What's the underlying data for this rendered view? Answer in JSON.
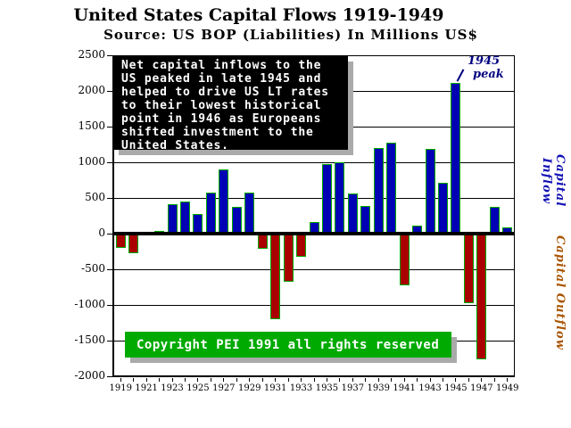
{
  "title": "United States Capital Flows 1919-1949",
  "subtitle": "Source: US BOP (Liabilities) In Millions US$",
  "annotation": {
    "lines": [
      "Net capital inflows to the",
      "US peaked in late 1945 and",
      "helped to drive US LT rates",
      "to their lowest historical",
      "point in 1946 as Europeans",
      "shifted investment to the",
      "United States."
    ]
  },
  "copyright": "Copyright PEI 1991 all rights reserved",
  "peak": {
    "line1": "1945",
    "line2": "peak"
  },
  "side_labels": {
    "inflow": "Capital Inflow",
    "outflow": "Capital Outflow"
  },
  "colors": {
    "background": "#FFFFFF",
    "positive_bar": "#0000B4",
    "negative_bar": "#AA0000",
    "bar_outline": "#00AA00",
    "annotation_box_bg": "#000000",
    "annotation_text": "#FFFFFF",
    "copyright_box_bg": "#00AA00",
    "shadow_gray": "#AAAAAA",
    "peak_text": "#000080",
    "inflow_label": "#1212B4",
    "outflow_label": "#AA5500"
  },
  "chart_data": {
    "type": "bar",
    "title": "United States Capital Flows 1919-1949",
    "subtitle": "Source: US BOP (Liabilities) In Millions US$",
    "xlabel": "",
    "ylabel": "Millions US$",
    "x": [
      1919,
      1920,
      1921,
      1922,
      1923,
      1924,
      1925,
      1926,
      1927,
      1928,
      1929,
      1930,
      1931,
      1932,
      1933,
      1934,
      1935,
      1936,
      1937,
      1938,
      1939,
      1940,
      1941,
      1942,
      1943,
      1944,
      1945,
      1946,
      1947,
      1948,
      1949
    ],
    "values": [
      -200,
      -280,
      0,
      40,
      410,
      450,
      270,
      575,
      895,
      375,
      580,
      -210,
      -1200,
      -680,
      -320,
      160,
      980,
      1000,
      560,
      390,
      1200,
      1280,
      -720,
      110,
      1190,
      710,
      2110,
      -970,
      -1760,
      370,
      90
    ],
    "ylim": [
      -2000,
      2500
    ],
    "ytick_step": 500,
    "xtick_labels": [
      "1919",
      "1921",
      "1923",
      "1925",
      "1927",
      "1929",
      "1931",
      "1933",
      "1935",
      "1937",
      "1939",
      "1941",
      "1943",
      "1945",
      "1947",
      "1949"
    ],
    "grid": "horizontal-every-500",
    "legend": "none",
    "positive_color": "#0000B4",
    "negative_color": "#AA0000",
    "bar_outline_color": "#00AA00",
    "annotations": [
      {
        "text": "1945 peak",
        "target_year": 1945,
        "target_value": 2110
      }
    ]
  }
}
